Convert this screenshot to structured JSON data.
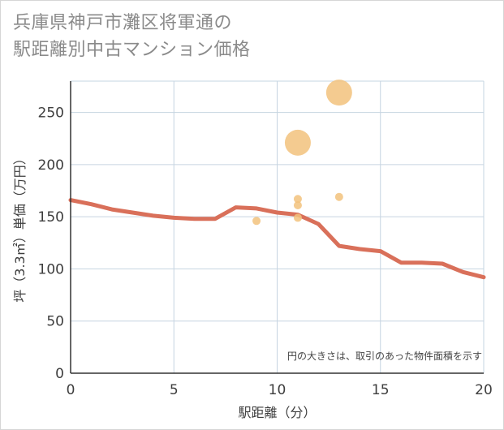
{
  "chart_data": {
    "type": "scatter",
    "title_line1": "兵庫県神戸市灘区将軍通の",
    "title_line2": "駅距離別中古マンション価格",
    "xlabel": "駅距離（分）",
    "ylabel": "坪（3.3㎡）単価（万円）",
    "xlim": [
      0,
      20
    ],
    "ylim": [
      0,
      280
    ],
    "x_ticks": [
      0,
      5,
      10,
      15,
      20
    ],
    "y_ticks": [
      0,
      50,
      100,
      150,
      200,
      250
    ],
    "grid": true,
    "note": "円の大きさは、取引のあった物件面積を示す",
    "colors": {
      "points": "#f2c27c",
      "line": "#d9705a",
      "grid": "#c6d4e1",
      "axis": "#333333"
    },
    "points": [
      {
        "x": 9,
        "y": 146,
        "size": 1
      },
      {
        "x": 11,
        "y": 221,
        "size": 5
      },
      {
        "x": 11,
        "y": 167,
        "size": 1
      },
      {
        "x": 11,
        "y": 161,
        "size": 1
      },
      {
        "x": 11,
        "y": 149,
        "size": 1
      },
      {
        "x": 13,
        "y": 269,
        "size": 5
      },
      {
        "x": 13,
        "y": 169,
        "size": 1
      }
    ],
    "trend_line": {
      "x": [
        0,
        1,
        2,
        3,
        4,
        5,
        6,
        7,
        8,
        9,
        10,
        11,
        12,
        13,
        14,
        15,
        16,
        17,
        18,
        19,
        20
      ],
      "y": [
        166,
        162,
        157,
        154,
        151,
        149,
        148,
        148,
        159,
        158,
        154,
        152,
        143,
        122,
        119,
        117,
        106,
        106,
        105,
        97,
        92
      ]
    }
  }
}
